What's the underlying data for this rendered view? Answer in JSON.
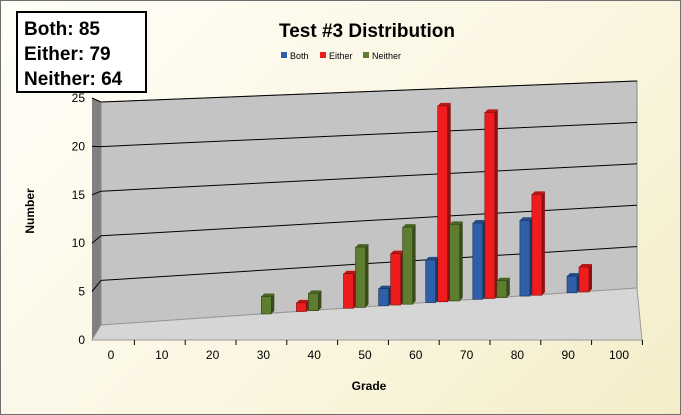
{
  "stats": {
    "both": "Both: 85",
    "either": "Either: 79",
    "neither": "Neither: 64"
  },
  "colors": {
    "both": "#2e5fa8",
    "either": "#ee1c1c",
    "neither": "#5e7d2e",
    "plot_back": "#c4c4c4",
    "floor": "#d6d6d6",
    "side_wall": "#808080"
  },
  "chart_data": {
    "type": "bar",
    "title": "Test #3 Distribution",
    "xlabel": "Grade",
    "ylabel": "Number",
    "categories": [
      "0",
      "10",
      "20",
      "30",
      "40",
      "50",
      "60",
      "70",
      "80",
      "90",
      "100"
    ],
    "series": [
      {
        "name": "Both",
        "values": [
          0,
          0,
          0,
          0,
          0,
          0,
          2,
          5,
          9,
          9,
          2
        ]
      },
      {
        "name": "Either",
        "values": [
          0,
          0,
          0,
          0,
          1,
          4,
          6,
          23,
          22,
          12,
          3
        ]
      },
      {
        "name": "Neither",
        "values": [
          0,
          0,
          0,
          2,
          2,
          7,
          9,
          9,
          2,
          0,
          0
        ]
      }
    ],
    "ylim": [
      0,
      25
    ],
    "yticks": [
      0,
      5,
      10,
      15,
      20,
      25
    ],
    "grid": true,
    "legend_position": "top-center"
  }
}
